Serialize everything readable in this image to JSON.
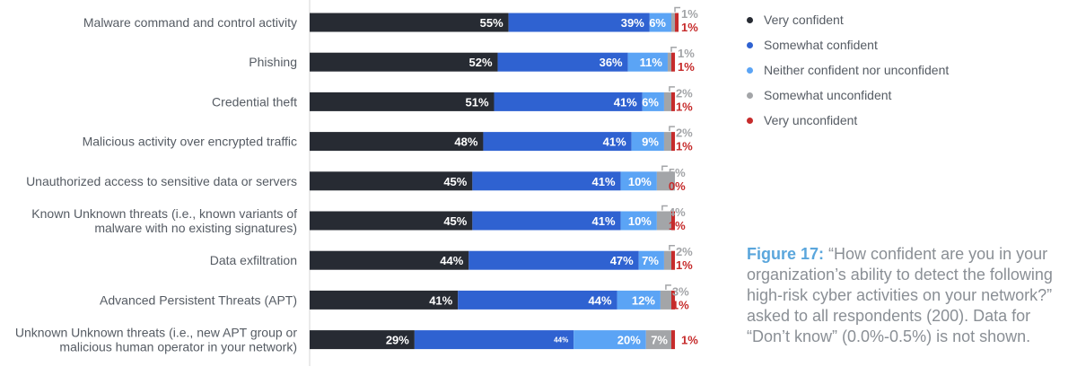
{
  "chart_data": {
    "type": "bar",
    "orientation": "horizontal",
    "stacked": true,
    "categories": [
      [
        "Malware command and control activity"
      ],
      [
        "Phishing"
      ],
      [
        "Credential theft"
      ],
      [
        "Malicious activity over encrypted traffic"
      ],
      [
        "Unauthorized access to sensitive data or servers"
      ],
      [
        "Known Unknown threats (i.e., known variants of",
        "malware with no existing signatures)"
      ],
      [
        "Data exfiltration"
      ],
      [
        "Advanced Persistent Threats (APT)"
      ],
      [
        "Unknown Unknown threats (i.e., new APT group or",
        "malicious human operator in your network)"
      ]
    ],
    "series": [
      {
        "name": "Very confident",
        "color": "#272b33",
        "values": [
          55,
          52,
          51,
          48,
          45,
          45,
          44,
          41,
          29
        ]
      },
      {
        "name": "Somewhat confident",
        "color": "#2f62d1",
        "values": [
          39,
          36,
          41,
          41,
          41,
          41,
          47,
          44,
          44
        ]
      },
      {
        "name": "Neither confident nor unconfident",
        "color": "#5ba4f5",
        "values": [
          6,
          11,
          6,
          9,
          10,
          10,
          7,
          12,
          20
        ]
      },
      {
        "name": "Somewhat unconfident",
        "color": "#a3a5a8",
        "values": [
          1,
          1,
          2,
          2,
          5,
          4,
          2,
          3,
          7
        ]
      },
      {
        "name": "Very unconfident",
        "color": "#c62b2b",
        "values": [
          1,
          1,
          1,
          1,
          0,
          1,
          1,
          1,
          1
        ]
      }
    ],
    "value_suffix": "%",
    "xlim": [
      0,
      100
    ]
  },
  "caption": {
    "figure_label": "Figure 17:",
    "text": " “How confident are you in your organization’s ability to detect the following high-risk cyber activities on your network?” asked to all respondents (200). Data for “Don’t know” (0.0%-0.5%) is not shown."
  }
}
